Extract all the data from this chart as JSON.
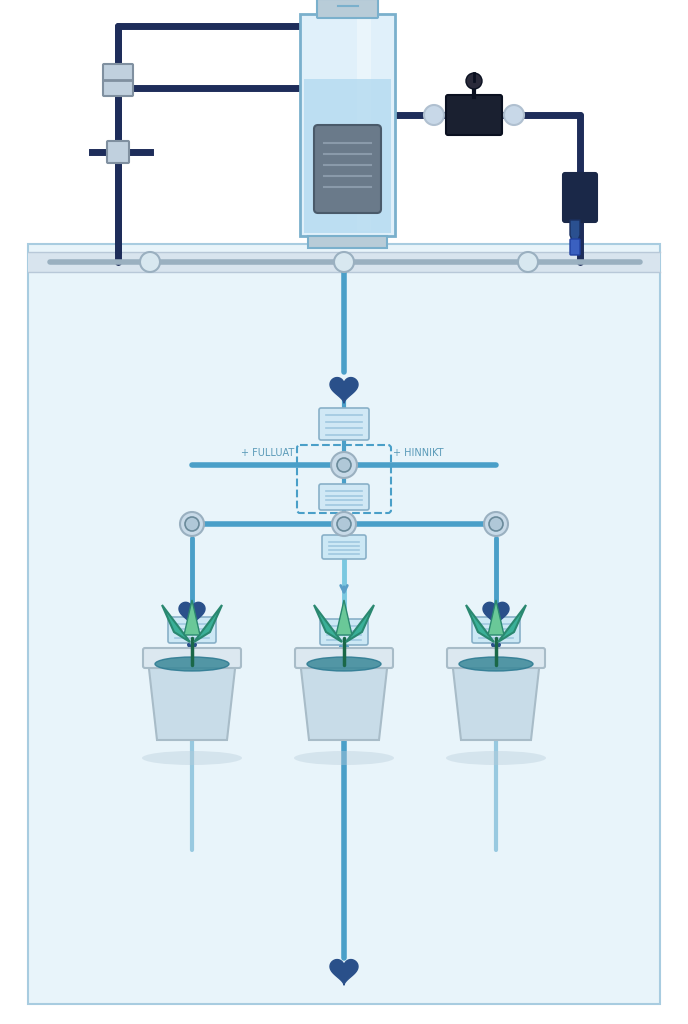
{
  "bg_white": "#ffffff",
  "bg_enclosure": "#e8f4fa",
  "border_enclosure": "#a8cce0",
  "shelf_color": "#d8e4ee",
  "shelf_edge": "#b8c8d8",
  "pipe_dark": "#1e2d5a",
  "pipe_blue": "#4a9fc8",
  "pipe_light": "#7ac8e0",
  "pipe_gray": "#9ab0c0",
  "arrow_dark": "#2a508a",
  "arrow_light": "#5a9fc8",
  "tank_body": "#e0f0fa",
  "tank_water": "#b0d8f0",
  "tank_border": "#7ab0cc",
  "tank_cap": "#b8ccd8",
  "pump_body": "#6a7a8a",
  "pump_coil": "#8a9aaa",
  "valve_outer": "#9ab0c0",
  "valve_inner": "#c8dae8",
  "solenoid_body": "#1a2030",
  "solenoid_conn": "#b0c0d0",
  "sensor_body": "#1a2848",
  "sensor_tip": "#2a4878",
  "plant_leaf_dark": "#3ab098",
  "plant_leaf_light": "#6ac898",
  "plant_leaf_mid": "#50b890",
  "soil_color": "#3a8898",
  "pot_body": "#c8dce8",
  "pot_rim": "#dce8f0",
  "pot_rim_edge": "#a8bcc8",
  "pot_shadow": "#b8ccda",
  "filter_body": "#d0e8f5",
  "filter_line": "#a0c8e0",
  "filter_border": "#88b0c8",
  "conn_box": "#c0d0de",
  "conn_box_edge": "#8090a0",
  "label_color": "#5a9ab8",
  "drip_color": "#7ac8e0"
}
